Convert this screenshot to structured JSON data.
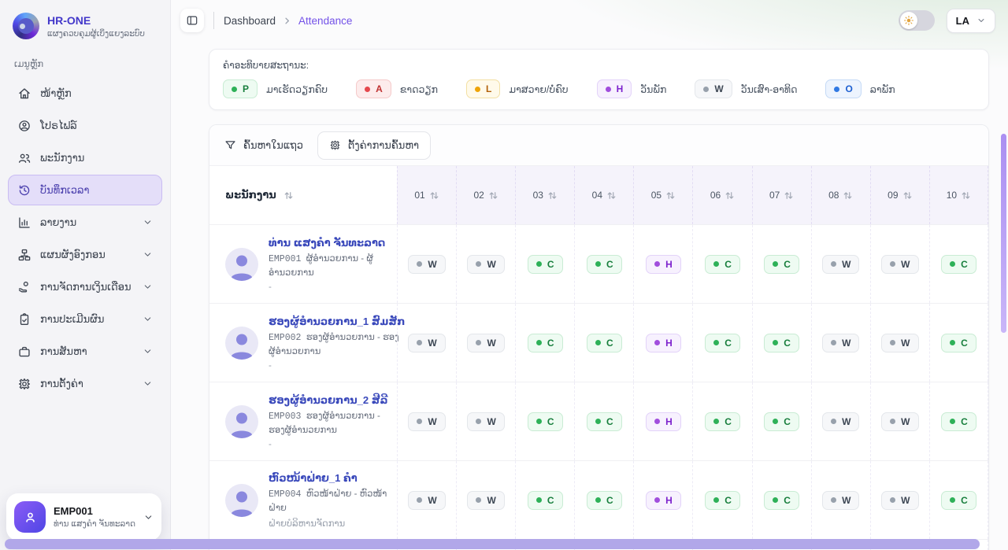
{
  "sidebar": {
    "logo_title": "HR-ONE",
    "logo_subtitle": "ແຜງຄວບຄຸມຜູ້ເບິ່ງແຍງລະບົບ",
    "section_label": "ເມນູຫຼັກ",
    "items": [
      {
        "label": "ໜ້າຫຼັກ",
        "icon": "home-icon",
        "expandable": false,
        "active": false
      },
      {
        "label": "ໂປຣໄຟລ໌",
        "icon": "profile-icon",
        "expandable": false,
        "active": false
      },
      {
        "label": "ພະນັກງານ",
        "icon": "people-icon",
        "expandable": false,
        "active": false
      },
      {
        "label": "ບັນທຶກເວລາ",
        "icon": "time-history-icon",
        "expandable": false,
        "active": true
      },
      {
        "label": "ລາຍງານ",
        "icon": "report-icon",
        "expandable": true,
        "active": false
      },
      {
        "label": "ແຜນຜັງອົງກອນ",
        "icon": "org-chart-icon",
        "expandable": true,
        "active": false
      },
      {
        "label": "ການຈັດການເງິນເດືອນ",
        "icon": "payroll-icon",
        "expandable": true,
        "active": false
      },
      {
        "label": "ການປະເມີນຜົນ",
        "icon": "evaluation-icon",
        "expandable": true,
        "active": false
      },
      {
        "label": "ການສັນຫາ",
        "icon": "recruitment-icon",
        "expandable": true,
        "active": false
      },
      {
        "label": "ການຕັ້ງຄ່າ",
        "icon": "settings-icon",
        "expandable": true,
        "active": false
      }
    ],
    "user_card": {
      "code": "EMP001",
      "name": "ທ່ານ ແສງຄຳ ຈັນທະລາດ"
    }
  },
  "header": {
    "breadcrumb": [
      "Dashboard",
      "Attendance"
    ],
    "language": "LA"
  },
  "legend": {
    "title": "ຄຳອະທິບາຍສະຖານະ:",
    "items": [
      {
        "code": "P",
        "label": "ມາເຮັດວຽກຄົບ"
      },
      {
        "code": "A",
        "label": "ຂາດວຽກ"
      },
      {
        "code": "L",
        "label": "ມາສວາຍ/ບໍ່ຄົບ"
      },
      {
        "code": "H",
        "label": "ວັນພັກ"
      },
      {
        "code": "W",
        "label": "ວັນເສົາ-ອາທິດ"
      },
      {
        "code": "O",
        "label": "ລາພັກ"
      }
    ]
  },
  "toolbar": {
    "filter_label": "ຄົ້ນຫາໃນແຖວ",
    "settings_label": "ຕັ້ງຄ່າການຄົ້ນຫາ"
  },
  "table": {
    "employee_header": "ພະນັກງານ",
    "day_headers": [
      "01",
      "02",
      "03",
      "04",
      "05",
      "06",
      "07",
      "08",
      "09",
      "10"
    ],
    "rows": [
      {
        "name": "ທ່ານ ແສງຄຳ ຈັນທະລາດ",
        "code": "EMP001",
        "position": "ຜູ້ອຳນວຍການ - ຜູ້ອຳນວຍການ",
        "department": "-",
        "statuses": [
          "W",
          "W",
          "C",
          "C",
          "H",
          "C",
          "C",
          "W",
          "W",
          "C"
        ]
      },
      {
        "name": "ຮອງຜູ້ອຳນວຍການ_1 ສົມສັກ",
        "code": "EMP002",
        "position": "ຮອງຜູ້ອຳນວຍການ - ຮອງຜູ້ອຳນວຍການ",
        "department": "-",
        "statuses": [
          "W",
          "W",
          "C",
          "C",
          "H",
          "C",
          "C",
          "W",
          "W",
          "C"
        ]
      },
      {
        "name": "ຮອງຜູ້ອຳນວຍການ_2 ສີລີ",
        "code": "EMP003",
        "position": "ຮອງຜູ້ອຳນວຍການ - ຮອງຜູ້ອຳນວຍການ",
        "department": "-",
        "statuses": [
          "W",
          "W",
          "C",
          "C",
          "H",
          "C",
          "C",
          "W",
          "W",
          "C"
        ]
      },
      {
        "name": "ຫົວໜ້າຝ່າຍ_1 ຄຳ",
        "code": "EMP004",
        "position": "ຫົວໜ້າຝ່າຍ - ຫົວໜ້າຝ່າຍ",
        "department": "ຝ່າຍບໍລິຫານຈັດການ",
        "statuses": [
          "W",
          "W",
          "C",
          "C",
          "H",
          "C",
          "C",
          "W",
          "W",
          "C"
        ]
      }
    ]
  },
  "status_styles": {
    "P": {
      "bg": "#eefbf2",
      "border": "#c9ecd4",
      "dot": "#2eb158",
      "text": "#177e3c"
    },
    "C": {
      "bg": "#eefbf2",
      "border": "#c9ecd4",
      "dot": "#2eb158",
      "text": "#177e3c"
    },
    "A": {
      "bg": "#fdecec",
      "border": "#f5caca",
      "dot": "#e5484d",
      "text": "#c03232"
    },
    "L": {
      "bg": "#fffaea",
      "border": "#f3e0a4",
      "dot": "#efa408",
      "text": "#b2610a"
    },
    "H": {
      "bg": "#f7f1fe",
      "border": "#e3d3f9",
      "dot": "#a14edd",
      "text": "#7d22cd"
    },
    "W": {
      "bg": "#f6f7f9",
      "border": "#e4e7eb",
      "dot": "#98a1ac",
      "text": "#3d4754"
    },
    "O": {
      "bg": "#edf4fe",
      "border": "#c5daf6",
      "dot": "#3079e3",
      "text": "#1c5fd1"
    }
  },
  "colors": {
    "accent_purple": "#7351e8",
    "brand_indigo": "#4338ca",
    "active_item_bg": "#e4def9",
    "scrollbar_purple": "#b1a7e9",
    "header_day_bg": "#f5f3fb"
  }
}
